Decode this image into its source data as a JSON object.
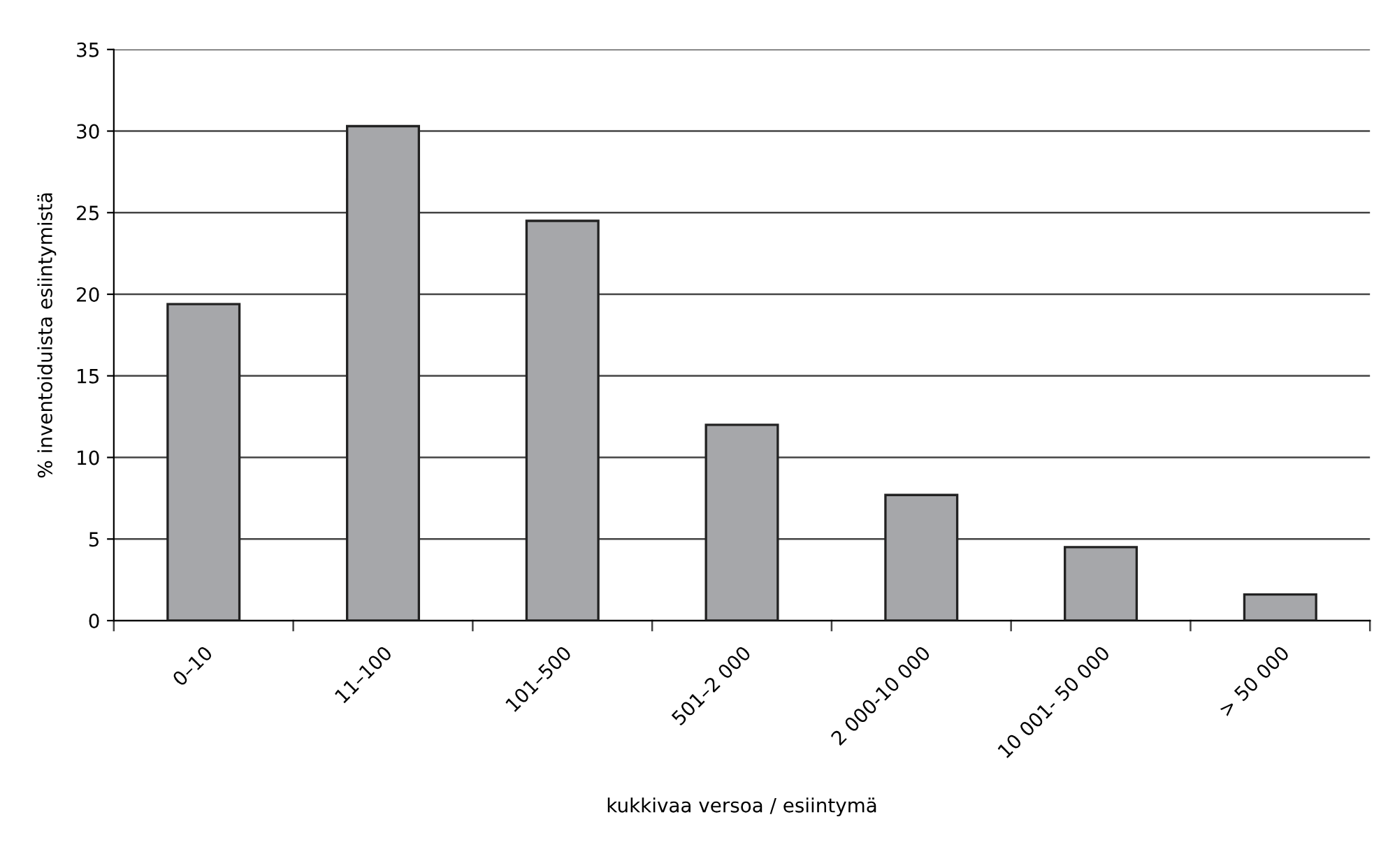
{
  "chart_data": {
    "type": "bar",
    "xlabel": "kukkivaa versoa / esiintymä",
    "ylabel": "% inventoiduista esiintymistä",
    "categories": [
      "0–10",
      "11–100",
      "101–500",
      "501–2 000",
      "2 000-10 000",
      "10 001- 50 000",
      "> 50 000"
    ],
    "values": [
      19.4,
      30.3,
      24.5,
      12.0,
      7.7,
      4.5,
      1.6
    ],
    "color": "#a6a7aa",
    "ylim": [
      0,
      35
    ],
    "yticks": [
      0,
      5,
      10,
      15,
      20,
      25,
      30,
      35
    ],
    "grid": "y"
  }
}
